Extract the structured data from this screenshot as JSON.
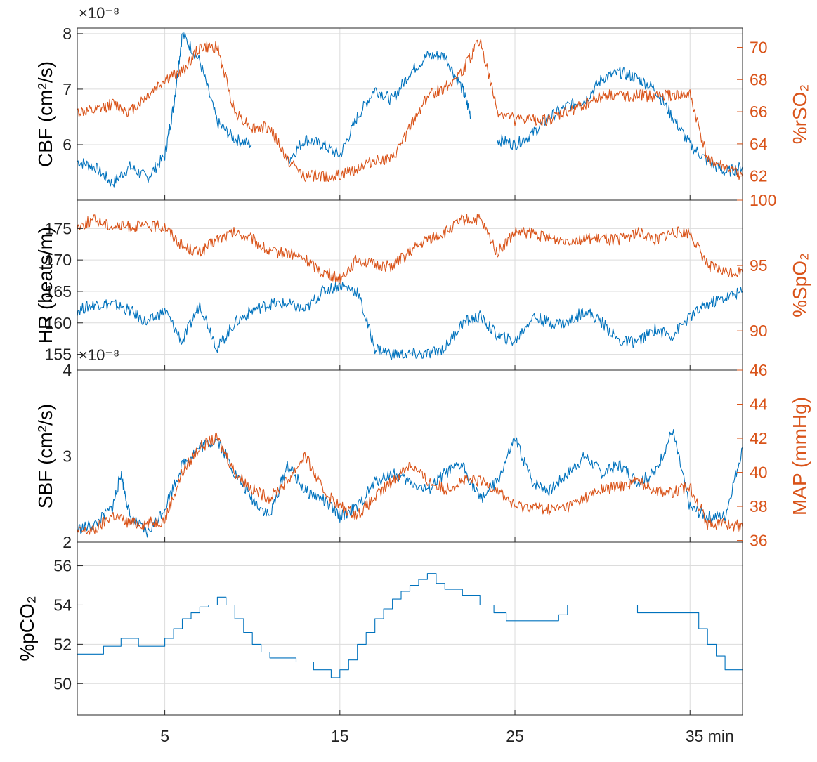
{
  "colors": {
    "blue": "#0072BD",
    "orange": "#D95319",
    "text": "#222222"
  },
  "chart_data": [
    {
      "type": "line",
      "x_ticks": [
        "5",
        "15",
        "25",
        "35 min"
      ],
      "left_axis": {
        "label": "CBF (cm²/s)",
        "exponent": "×10⁻⁸",
        "ticks": [
          "6",
          "7",
          "8"
        ],
        "range": [
          5,
          8.1
        ],
        "tick_values": [
          6,
          7,
          8
        ]
      },
      "right_axis": {
        "label": "%rSO₂",
        "ticks": [
          "62",
          "64",
          "66",
          "68",
          "70"
        ],
        "range": [
          60.5,
          71.2
        ],
        "tick_values": [
          62,
          64,
          66,
          68,
          70
        ]
      },
      "series": [
        {
          "axis": "left",
          "color": "#0072BD",
          "x": [
            0,
            1,
            2,
            3,
            4,
            5,
            5.5,
            6,
            7,
            8,
            9,
            10,
            11,
            12,
            13,
            14,
            15,
            16,
            17,
            18,
            19,
            20,
            21,
            22,
            22.5,
            23.5,
            24,
            25,
            26,
            27,
            28,
            29,
            30,
            31,
            32,
            33,
            34,
            35,
            36,
            37,
            38
          ],
          "y": [
            5.7,
            5.6,
            5.3,
            5.6,
            5.4,
            5.8,
            6.7,
            8.0,
            7.5,
            6.4,
            6.1,
            6.0,
            null,
            5.7,
            6.1,
            6.0,
            5.8,
            6.5,
            7.0,
            6.8,
            7.3,
            7.6,
            7.6,
            7.0,
            6.5,
            null,
            6.1,
            6.0,
            6.2,
            6.5,
            6.7,
            6.8,
            7.2,
            7.3,
            7.2,
            7.0,
            6.5,
            6.0,
            5.7,
            5.5,
            5.6
          ],
          "gaps": [
            [
              10,
              10.8
            ],
            [
              22.6,
              23.4
            ]
          ]
        },
        {
          "axis": "right",
          "color": "#D95319",
          "x": [
            0,
            1,
            2,
            3,
            4,
            5,
            6,
            7,
            8,
            9,
            10,
            11,
            12,
            13,
            14,
            15,
            16,
            17,
            18,
            19,
            20,
            21,
            22,
            23,
            24,
            25,
            26,
            27,
            28,
            29,
            30,
            31,
            32,
            33,
            34,
            35,
            36,
            37,
            38
          ],
          "y": [
            66,
            66,
            66.5,
            66,
            67,
            68,
            68.5,
            70,
            70,
            66,
            65,
            65,
            63,
            62,
            62,
            62,
            62.5,
            63,
            63,
            65,
            67,
            67.5,
            68.5,
            70.5,
            66,
            65.5,
            65.5,
            65.5,
            66,
            66.5,
            67,
            67,
            67,
            67,
            67,
            67,
            63,
            62.5,
            62
          ]
        }
      ]
    },
    {
      "type": "line",
      "left_axis": {
        "label": "HR (beats/m)",
        "ticks": [
          "155",
          "160",
          "165",
          "170",
          "175"
        ],
        "range": [
          152.5,
          179.5
        ],
        "tick_values": [
          155,
          160,
          165,
          170,
          175
        ]
      },
      "right_axis": {
        "label": "%SpO₂",
        "ticks": [
          "90",
          "95",
          "100"
        ],
        "range": [
          87,
          100
        ],
        "tick_values": [
          90,
          95,
          100
        ]
      },
      "series": [
        {
          "axis": "left",
          "color": "#0072BD",
          "x": [
            0,
            1,
            2,
            3,
            4,
            5,
            6,
            7,
            8,
            9,
            10,
            11,
            12,
            13,
            14,
            15,
            16,
            17,
            18,
            19,
            20,
            21,
            22,
            23,
            24,
            25,
            26,
            27,
            28,
            29,
            30,
            31,
            32,
            33,
            34,
            35,
            36,
            37,
            38
          ],
          "y": [
            162,
            163,
            163,
            162,
            160,
            162,
            157,
            163,
            156,
            160,
            162,
            163,
            163,
            162,
            165,
            166,
            165,
            156,
            155,
            155,
            155,
            156,
            160,
            161,
            158,
            157,
            161,
            160,
            160,
            162,
            160,
            157,
            157,
            159,
            158,
            161,
            163,
            164,
            165
          ]
        },
        {
          "axis": "right",
          "color": "#D95319",
          "x": [
            0,
            1,
            2,
            3,
            4,
            5,
            6,
            7,
            8,
            9,
            10,
            11,
            12,
            13,
            14,
            15,
            16,
            17,
            18,
            19,
            20,
            21,
            22,
            23,
            24,
            25,
            26,
            27,
            28,
            29,
            30,
            31,
            32,
            33,
            34,
            35,
            36,
            37,
            38
          ],
          "y": [
            98,
            98.5,
            98,
            98,
            98,
            98,
            96.5,
            96,
            97,
            97.5,
            97,
            96,
            96,
            95.5,
            94.5,
            94,
            95.5,
            95,
            95,
            96,
            97,
            97.5,
            98.5,
            98.5,
            96,
            97.5,
            97.5,
            97,
            97,
            97,
            97,
            97,
            97.5,
            97,
            97.5,
            97.5,
            95,
            94.5,
            94.5
          ]
        }
      ]
    },
    {
      "type": "line",
      "left_axis": {
        "label": "SBF (cm²/s)",
        "exponent": "×10⁻⁸",
        "ticks": [
          "2",
          "3",
          "4"
        ],
        "range": [
          2,
          4
        ],
        "tick_values": [
          2,
          3,
          4
        ]
      },
      "right_axis": {
        "label": "MAP (mmHg)",
        "ticks": [
          "36",
          "38",
          "40",
          "42",
          "44",
          "46"
        ],
        "range": [
          35.9,
          46
        ],
        "tick_values": [
          36,
          38,
          40,
          42,
          44,
          46
        ]
      },
      "series": [
        {
          "axis": "left",
          "color": "#0072BD",
          "x": [
            0,
            1,
            2,
            2.5,
            3,
            4,
            5,
            6,
            7,
            8,
            9,
            10,
            11,
            12,
            13,
            14,
            15,
            16,
            17,
            18,
            19,
            20,
            21,
            22,
            23,
            24,
            25,
            26,
            27,
            28,
            29,
            30,
            31,
            32,
            33,
            34,
            35,
            36,
            37,
            38
          ],
          "y": [
            2.15,
            2.2,
            2.4,
            2.8,
            2.3,
            2.1,
            2.4,
            2.9,
            3.1,
            3.2,
            2.8,
            2.5,
            2.3,
            2.9,
            2.6,
            2.5,
            2.3,
            2.4,
            2.7,
            2.8,
            2.7,
            2.6,
            2.8,
            2.9,
            2.5,
            2.7,
            3.2,
            2.7,
            2.6,
            2.8,
            3.0,
            2.8,
            2.9,
            2.7,
            2.8,
            3.3,
            2.4,
            2.3,
            2.3,
            3.1
          ]
        },
        {
          "axis": "right",
          "color": "#D95319",
          "x": [
            0,
            1,
            2,
            3,
            4,
            5,
            6,
            7,
            8,
            9,
            10,
            11,
            12,
            13,
            14,
            15,
            16,
            17,
            18,
            19,
            20,
            21,
            22,
            23,
            24,
            25,
            26,
            27,
            28,
            29,
            30,
            31,
            32,
            33,
            34,
            35,
            36,
            37,
            38
          ],
          "y": [
            36.5,
            36.6,
            37.5,
            37,
            37,
            37.2,
            40,
            41.5,
            42,
            40,
            39,
            38.5,
            39.5,
            41,
            39,
            38,
            37.5,
            38.5,
            39.5,
            40.5,
            39.5,
            39,
            39.5,
            39.5,
            39,
            38,
            38,
            37.8,
            38,
            38.5,
            39,
            39.2,
            39.5,
            39,
            38.8,
            39.2,
            37,
            37,
            36.8
          ]
        }
      ]
    },
    {
      "type": "line",
      "left_axis": {
        "label": "%pCO₂",
        "ticks": [
          "50",
          "52",
          "54",
          "56"
        ],
        "range": [
          48.4,
          57.2
        ],
        "tick_values": [
          50,
          52,
          54,
          56
        ]
      },
      "series": [
        {
          "axis": "left",
          "color": "#0072BD",
          "step": true,
          "x": [
            0,
            1.5,
            2.5,
            3.5,
            4.5,
            5.0,
            5.5,
            6.0,
            6.5,
            7.0,
            7.5,
            8.0,
            8.5,
            9.0,
            9.5,
            10.0,
            10.5,
            11.0,
            12.5,
            13.5,
            14.5,
            15.0,
            15.5,
            16.0,
            16.5,
            17.0,
            17.5,
            18.0,
            18.5,
            19.0,
            19.5,
            20.0,
            20.5,
            21.0,
            22.0,
            23.0,
            23.8,
            24.5,
            25.5,
            27.5,
            28.0,
            29.5,
            32.0,
            35.0,
            35.5,
            36.0,
            36.5,
            37.0,
            38.0
          ],
          "y": [
            51.5,
            51.9,
            52.3,
            51.9,
            51.9,
            52.3,
            52.8,
            53.3,
            53.6,
            53.9,
            54.0,
            54.4,
            54.0,
            53.3,
            52.6,
            52.0,
            51.6,
            51.3,
            51.1,
            50.7,
            50.3,
            50.7,
            51.2,
            52.0,
            52.6,
            53.3,
            53.8,
            54.3,
            54.7,
            55.0,
            55.3,
            55.6,
            55.1,
            54.8,
            54.5,
            54.0,
            53.6,
            53.2,
            53.2,
            53.5,
            54.0,
            54.0,
            53.6,
            53.6,
            52.8,
            52.0,
            51.4,
            50.7,
            50.7
          ]
        }
      ]
    }
  ]
}
